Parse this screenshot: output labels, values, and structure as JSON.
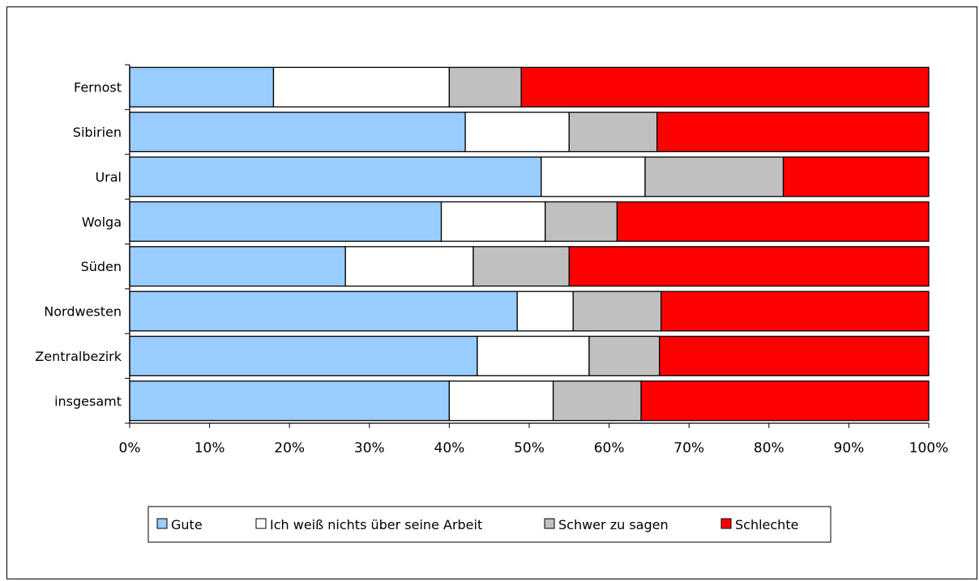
{
  "chart_data": {
    "type": "bar",
    "orientation": "horizontal",
    "stacked": true,
    "percent_stacked": true,
    "categories": [
      "Fernost",
      "Sibirien",
      "Ural",
      "Wolga",
      "Süden",
      "Nordwesten",
      "Zentralbezirk",
      "insgesamt"
    ],
    "series": [
      {
        "name": "Gute",
        "color": "#99CCFF",
        "values": [
          18,
          42,
          51.5,
          39,
          27,
          48.5,
          43.5,
          40
        ]
      },
      {
        "name": "Ich weiß nichts über seine Arbeit",
        "color": "#FFFFFF",
        "values": [
          22,
          13,
          13,
          13,
          16,
          7,
          14,
          13
        ]
      },
      {
        "name": "Schwer zu sagen",
        "color": "#C0C0C0",
        "values": [
          9,
          11,
          17.3,
          9,
          12,
          11,
          8.8,
          11
        ]
      },
      {
        "name": "Schlechte",
        "color": "#FF0000",
        "values": [
          51,
          34,
          18.2,
          39,
          45,
          33.5,
          33.7,
          36
        ]
      }
    ],
    "xlim": [
      0,
      100
    ],
    "xticks": [
      "0%",
      "10%",
      "20%",
      "30%",
      "40%",
      "50%",
      "60%",
      "70%",
      "80%",
      "90%",
      "100%"
    ],
    "grid": false,
    "legend_position": "bottom"
  }
}
